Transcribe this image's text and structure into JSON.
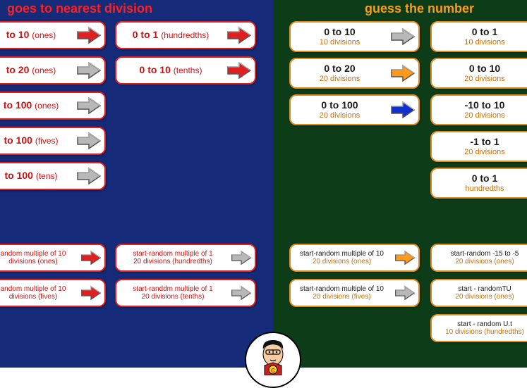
{
  "left": {
    "title": "goes to nearest division",
    "col1": [
      {
        "main": "to 10",
        "paren": "(ones)",
        "arrow": "#e02020"
      },
      {
        "main": "to 20",
        "paren": "(ones)",
        "arrow": "#b8b8b8"
      },
      {
        "main": "to 100",
        "paren": "(ones)",
        "arrow": "#b8b8b8"
      },
      {
        "main": "to 100",
        "paren": "(fives)",
        "arrow": "#b8b8b8"
      },
      {
        "main": "to 100",
        "paren": "(tens)",
        "arrow": "#b8b8b8"
      }
    ],
    "col2": [
      {
        "main": "0 to 1",
        "paren": "(hundredths)",
        "arrow": "#e02020"
      },
      {
        "main": "0 to 10",
        "paren": "(tenths)",
        "arrow": "#e02020"
      }
    ],
    "row2col1": [
      {
        "l1": "andom multiple of 10",
        "l2": " divisions (ones)",
        "arrow": "#e02020"
      },
      {
        "l1": "andom multiple of 10",
        "l2": " divisions (fives)",
        "arrow": "#e02020"
      }
    ],
    "row2col2": [
      {
        "l1": "start-random multiple of 1",
        "l2": "20 divisions (hundredths)",
        "arrow": "#b8b8b8"
      },
      {
        "l1": "start-randdm multiple of 1",
        "l2": "20 divisions (tenths)",
        "arrow": "#b8b8b8"
      }
    ]
  },
  "right": {
    "title": "guess the number",
    "col1": [
      {
        "main": "0 to 10",
        "sub": "10 divisions",
        "arrow": "#b8b8b8"
      },
      {
        "main": "0 to 20",
        "sub": "20 divisions",
        "arrow": "#ff9a1a"
      },
      {
        "main": "0 to 100",
        "sub": "20 divisions",
        "arrow": "#1030d0"
      }
    ],
    "col2": [
      {
        "main": "0 to 1",
        "sub": "10 divisions",
        "arrow_cut": true
      },
      {
        "main": "0 to 10",
        "sub": "20 divisions",
        "arrow_cut": true
      },
      {
        "main": "-10 to 10",
        "sub": "20 divisions",
        "arrow_cut": true
      },
      {
        "main": "-1 to 1",
        "sub": "20 divisions",
        "arrow_cut": true
      },
      {
        "main": "0 to 1",
        "sub": "hundredths",
        "arrow_cut": true
      }
    ],
    "row2col1": [
      {
        "l1": "start-random multiple of 10",
        "l2": "20 divisions (ones)",
        "arrow": "#ff9a1a"
      },
      {
        "l1": "start-random multiple of 10",
        "l2": "20 divisions (fives)",
        "arrow": "#b8b8b8"
      }
    ],
    "row2col2": [
      {
        "l1": "start-random -15 to -5",
        "l2": "20 divisions (ones)",
        "arrow_cut": true
      },
      {
        "l1": "start - randomTU",
        "l2": "20 divisions (ones)",
        "arrow_cut": true
      },
      {
        "l1": "start - random U.t",
        "l2": "10 divisions (hundredths)",
        "arrow_cut": true
      }
    ]
  },
  "colors": {
    "left_bg": "#152b7a",
    "right_bg": "#0d3d18",
    "red": "#e02020",
    "orange": "#ff9a1a",
    "blue": "#1030d0",
    "gray": "#b8b8b8"
  }
}
